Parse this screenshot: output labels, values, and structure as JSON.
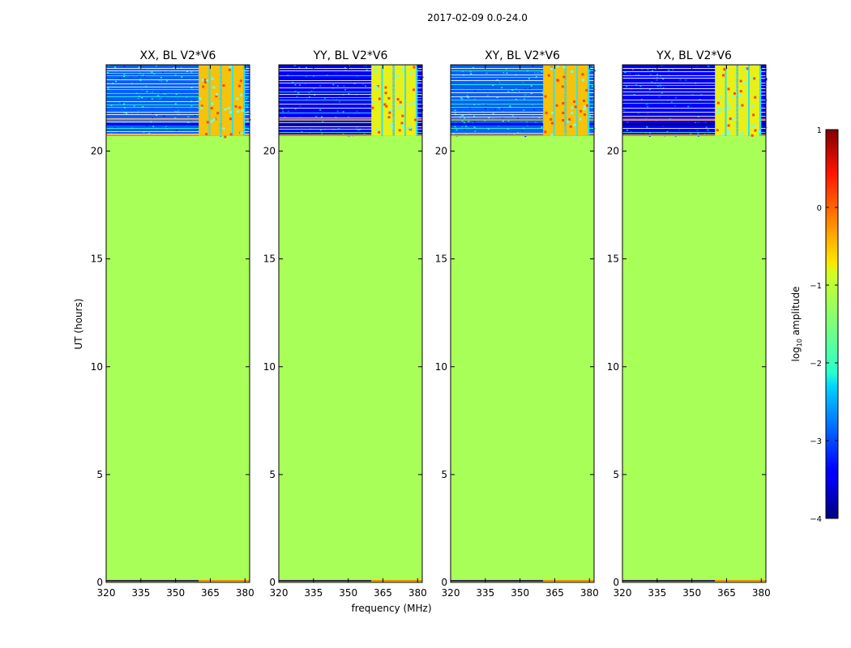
{
  "figure": {
    "suptitle": "2017-02-09 0.0-24.0",
    "ylabel": "UT (hours)",
    "xlabel": "frequency (MHz)"
  },
  "chart_data": {
    "type": "heatmap",
    "title": "2017-02-09 0.0-24.0",
    "xlabel": "frequency (MHz)",
    "ylabel": "UT (hours)",
    "xlim": [
      320,
      382
    ],
    "ylim": [
      0,
      24
    ],
    "xticks": [
      320,
      335,
      350,
      365,
      380
    ],
    "yticks": [
      0,
      5,
      10,
      15,
      20
    ],
    "data_start_hour": 20.7,
    "fill_log_amplitude": -1.3,
    "rfi_band_mhz": [
      360,
      380
    ],
    "panels": [
      {
        "name": "XX",
        "title": "XX, BL V2*V6",
        "bg_level": -2.9
      },
      {
        "name": "YY",
        "title": "YY, BL V2*V6",
        "bg_level": -3.4
      },
      {
        "name": "XY",
        "title": "XY, BL V2*V6",
        "bg_level": -2.9
      },
      {
        "name": "YX",
        "title": "YX, BL V2*V6",
        "bg_level": -3.4
      }
    ],
    "colorbar": {
      "label_prefix": "log",
      "label_sub": "10",
      "label_suffix": " amplitude",
      "min": -4,
      "max": 1,
      "ticks": [
        1,
        0,
        -1,
        -2,
        -3,
        -4
      ],
      "tick_labels": [
        "1",
        "0",
        "−1",
        "−2",
        "−3",
        "−4"
      ],
      "colormap": "jet"
    }
  }
}
